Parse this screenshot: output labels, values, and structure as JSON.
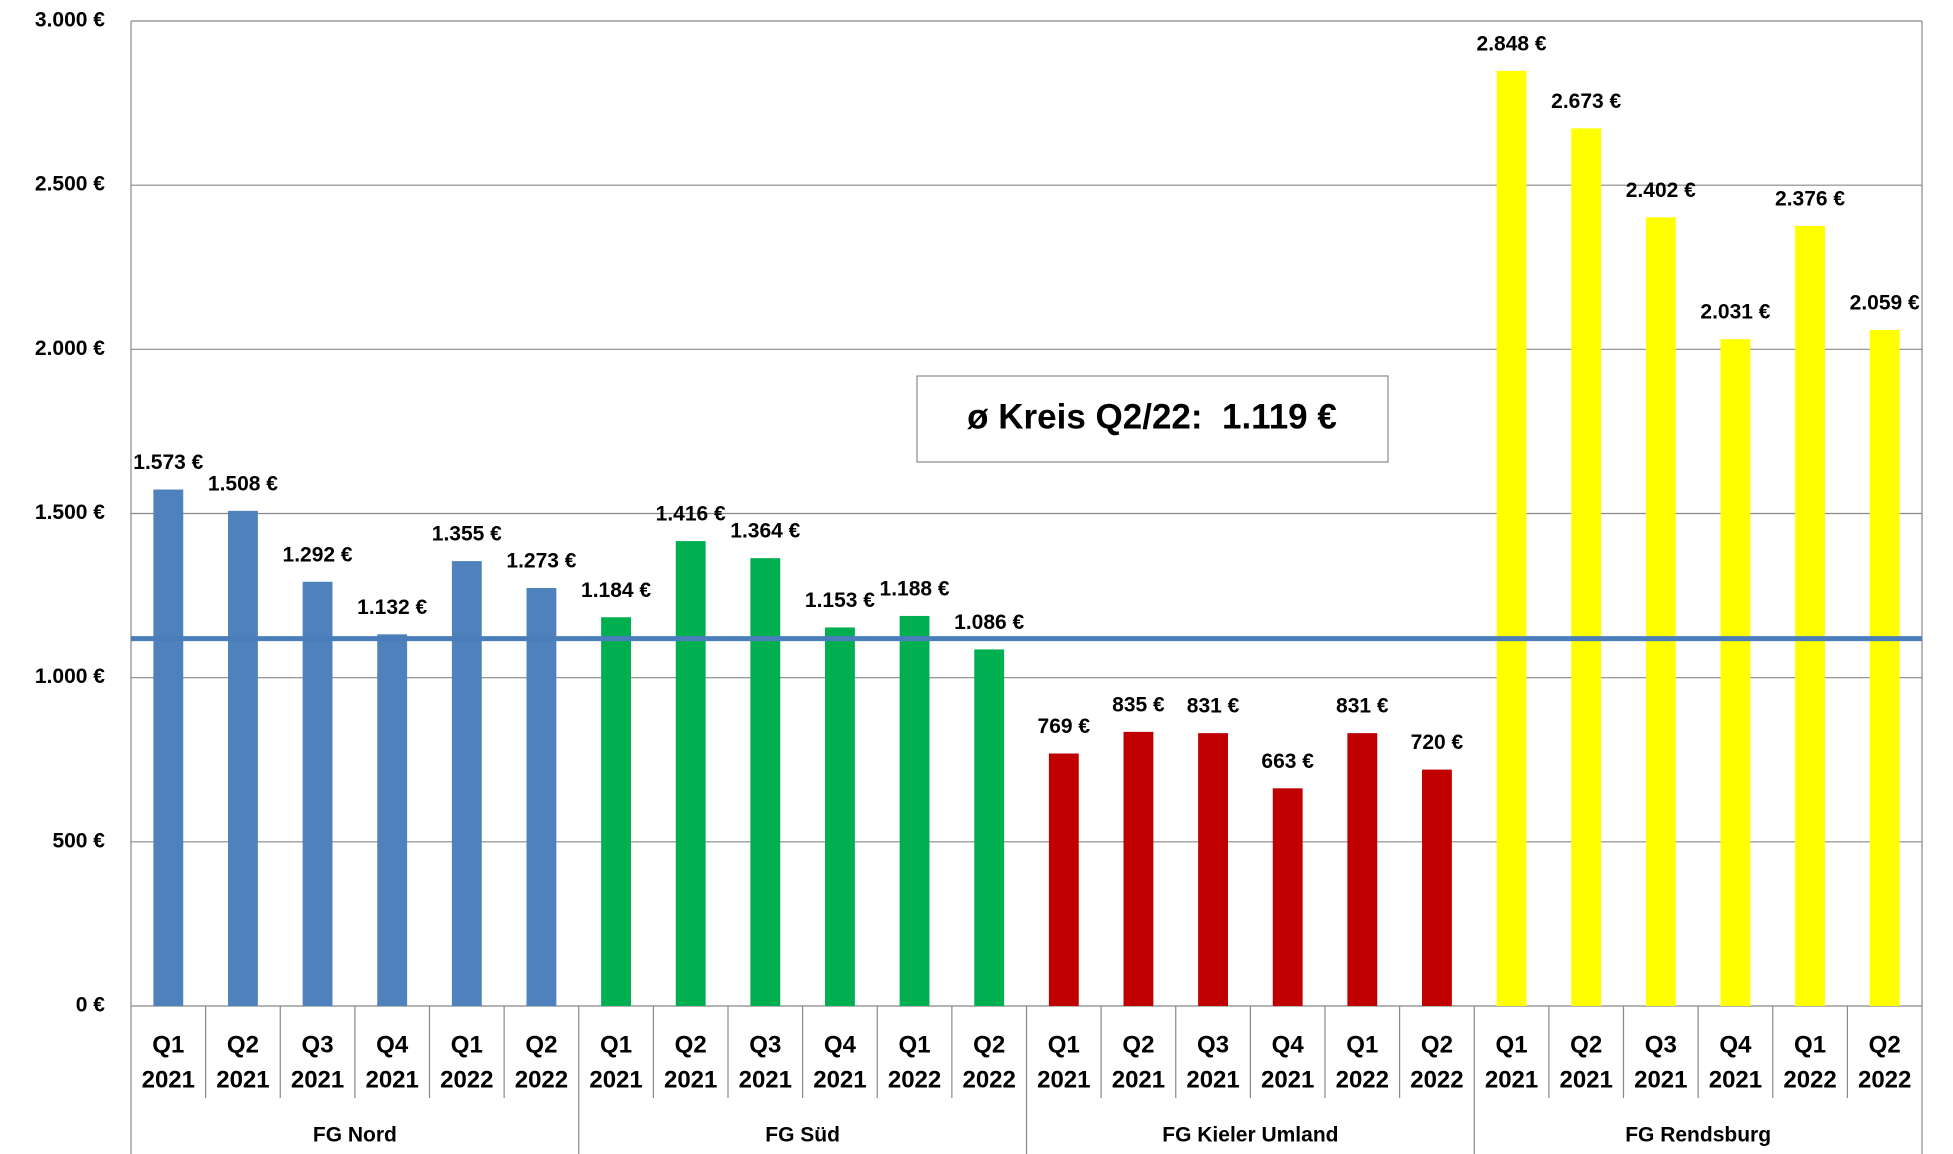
{
  "chart_data": {
    "type": "bar",
    "ylim": [
      0,
      3000
    ],
    "yticks": [
      {
        "value": 0,
        "label": "0 €"
      },
      {
        "value": 500,
        "label": "500 €"
      },
      {
        "value": 1000,
        "label": "1.000 €"
      },
      {
        "value": 1500,
        "label": "1.500 €"
      },
      {
        "value": 2000,
        "label": "2.000 €"
      },
      {
        "value": 2500,
        "label": "2.500 €"
      },
      {
        "value": 3000,
        "label": "3.000 €"
      }
    ],
    "grid": true,
    "groups": [
      {
        "name": "FG Nord",
        "color": "#4f81bd",
        "categories": [
          [
            "Q1",
            "2021"
          ],
          [
            "Q2",
            "2021"
          ],
          [
            "Q3",
            "2021"
          ],
          [
            "Q4",
            "2021"
          ],
          [
            "Q1",
            "2022"
          ],
          [
            "Q2",
            "2022"
          ]
        ],
        "values": [
          1573,
          1508,
          1292,
          1132,
          1355,
          1273
        ],
        "value_labels": [
          "1.573 €",
          "1.508 €",
          "1.292 €",
          "1.132 €",
          "1.355 €",
          "1.273 €"
        ]
      },
      {
        "name": "FG Süd",
        "color": "#00b050",
        "categories": [
          [
            "Q1",
            "2021"
          ],
          [
            "Q2",
            "2021"
          ],
          [
            "Q3",
            "2021"
          ],
          [
            "Q4",
            "2021"
          ],
          [
            "Q1",
            "2022"
          ],
          [
            "Q2",
            "2022"
          ]
        ],
        "values": [
          1184,
          1416,
          1364,
          1153,
          1188,
          1086
        ],
        "value_labels": [
          "1.184 €",
          "1.416 €",
          "1.364 €",
          "1.153 €",
          "1.188 €",
          "1.086 €"
        ]
      },
      {
        "name": "FG Kieler Umland",
        "color": "#c00000",
        "categories": [
          [
            "Q1",
            "2021"
          ],
          [
            "Q2",
            "2021"
          ],
          [
            "Q3",
            "2021"
          ],
          [
            "Q4",
            "2021"
          ],
          [
            "Q1",
            "2022"
          ],
          [
            "Q2",
            "2022"
          ]
        ],
        "values": [
          769,
          835,
          831,
          663,
          831,
          720
        ],
        "value_labels": [
          "769 €",
          "835 €",
          "831 €",
          "663 €",
          "831 €",
          "720 €"
        ]
      },
      {
        "name": "FG Rendsburg",
        "color": "#ffff00",
        "categories": [
          [
            "Q1",
            "2021"
          ],
          [
            "Q2",
            "2021"
          ],
          [
            "Q3",
            "2021"
          ],
          [
            "Q4",
            "2021"
          ],
          [
            "Q1",
            "2022"
          ],
          [
            "Q2",
            "2022"
          ]
        ],
        "values": [
          2848,
          2673,
          2402,
          2031,
          2376,
          2059
        ],
        "value_labels": [
          "2.848 €",
          "2.673 €",
          "2.402 €",
          "2.031 €",
          "2.376 €",
          "2.059 €"
        ]
      }
    ],
    "reference_line": {
      "label": "ø Kreis Q2/22:  1.119 €",
      "value": 1119,
      "color": "#4a7ebb"
    }
  }
}
